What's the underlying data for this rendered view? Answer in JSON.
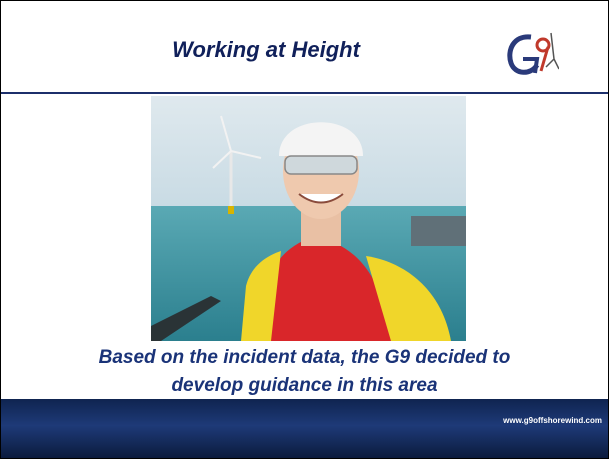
{
  "header": {
    "title": "Working at Height"
  },
  "caption": [
    "Based on the incident data, the G9 decided to",
    "develop guidance in this area"
  ],
  "footer": {
    "url": "www.g9offshorewind.com"
  }
}
